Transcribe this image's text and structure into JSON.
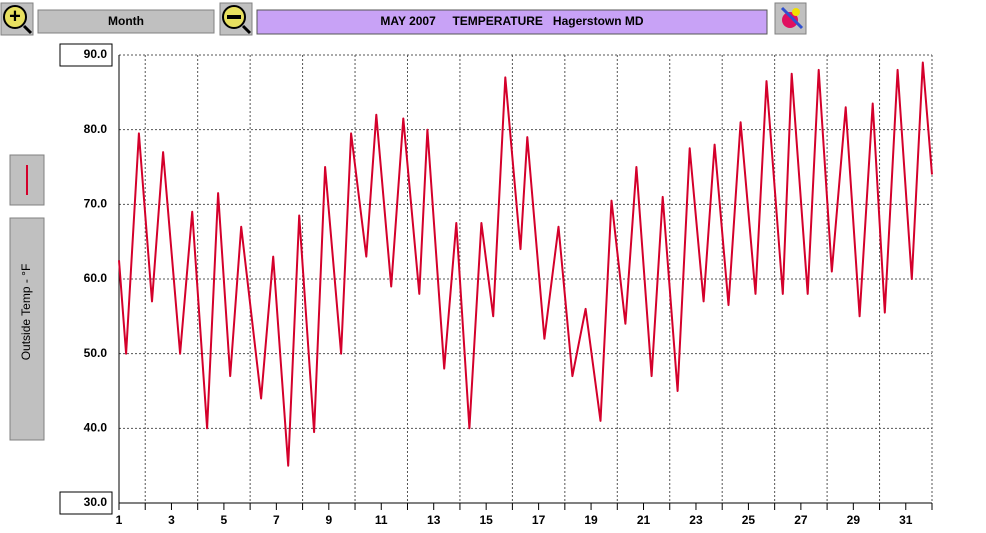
{
  "chart_data": {
    "type": "line",
    "title": "MAY 2007     TEMPERATURE   Hagerstown MD",
    "period_button": "Month",
    "ylabel": "Outside Temp - °F",
    "color": "#d4002b",
    "x": [
      1.0,
      1.27,
      1.76,
      2.26,
      2.68,
      3.33,
      3.79,
      4.36,
      4.78,
      5.24,
      5.66,
      6.42,
      6.88,
      7.45,
      7.87,
      8.44,
      8.86,
      9.47,
      9.85,
      10.43,
      10.81,
      11.38,
      11.84,
      12.45,
      12.76,
      13.4,
      13.86,
      14.36,
      14.82,
      15.27,
      15.73,
      16.31,
      16.57,
      17.22,
      17.76,
      18.29,
      18.79,
      19.36,
      19.78,
      20.31,
      20.73,
      21.31,
      21.73,
      22.3,
      22.76,
      23.29,
      23.71,
      24.24,
      24.7,
      25.27,
      25.69,
      26.31,
      26.65,
      27.26,
      27.68,
      28.18,
      28.71,
      29.24,
      29.74,
      30.2,
      30.69,
      31.23,
      31.65,
      32.0
    ],
    "values": [
      62.5,
      50,
      79.5,
      57,
      77,
      50,
      69,
      40,
      71.5,
      47,
      67,
      44,
      63,
      35,
      68.5,
      39.5,
      75,
      50,
      79.5,
      63,
      82,
      59,
      81.5,
      58,
      80,
      48,
      67.5,
      40,
      67.5,
      55,
      87,
      64,
      79,
      52,
      67,
      47,
      56,
      41,
      70.5,
      54,
      75,
      47,
      71,
      45,
      77.5,
      57,
      78,
      56.5,
      81,
      58,
      86.5,
      58,
      87.5,
      58,
      88,
      61,
      83,
      55,
      83.5,
      55.5,
      88,
      60,
      89,
      74
    ],
    "xlim": [
      1,
      32
    ],
    "xticks": [
      1,
      3,
      5,
      7,
      9,
      11,
      13,
      15,
      17,
      19,
      21,
      23,
      25,
      27,
      29,
      31
    ],
    "x_minor_ticks": [
      2,
      4,
      6,
      8,
      10,
      12,
      14,
      16,
      18,
      20,
      22,
      24,
      26,
      28,
      30,
      32
    ],
    "ylim": [
      30,
      90
    ],
    "yticks": [
      {
        "value": 30,
        "label": "30.0"
      },
      {
        "value": 40,
        "label": "40.0"
      },
      {
        "value": 50,
        "label": "50.0"
      },
      {
        "value": 60,
        "label": "60.0"
      },
      {
        "value": 70,
        "label": "70.0"
      },
      {
        "value": 80,
        "label": "80.0"
      },
      {
        "value": 90,
        "label": "90.0"
      }
    ],
    "grid": true
  }
}
